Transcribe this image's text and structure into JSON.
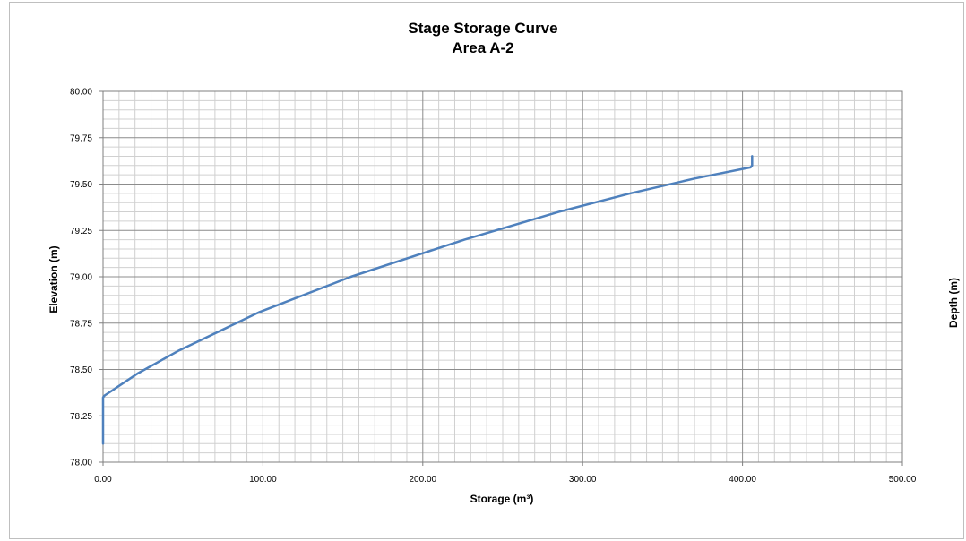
{
  "chart_data": {
    "type": "line",
    "title": "Stage Storage Curve",
    "subtitle": "Area A-2",
    "xlabel": "Storage (m³)",
    "ylabel": "Elevation (m)",
    "y2label": "Depth (m)",
    "xlim": [
      0,
      500
    ],
    "ylim": [
      78,
      80
    ],
    "x_ticks": [
      "0.00",
      "100.00",
      "200.00",
      "300.00",
      "400.00",
      "500.00"
    ],
    "y_ticks": [
      "78.00",
      "78.25",
      "78.50",
      "78.75",
      "79.00",
      "79.25",
      "79.50",
      "79.75",
      "80.00"
    ],
    "grid": true,
    "series": [
      {
        "color": "#4f81bd",
        "x": [
          0,
          0,
          1,
          8,
          22,
          47,
          98,
          155,
          226,
          285,
          330,
          370,
          405,
          406,
          406
        ],
        "y": [
          78.1,
          78.35,
          78.36,
          78.4,
          78.48,
          78.6,
          78.81,
          79.0,
          79.2,
          79.35,
          79.45,
          79.53,
          79.59,
          79.6,
          79.65
        ]
      }
    ]
  }
}
